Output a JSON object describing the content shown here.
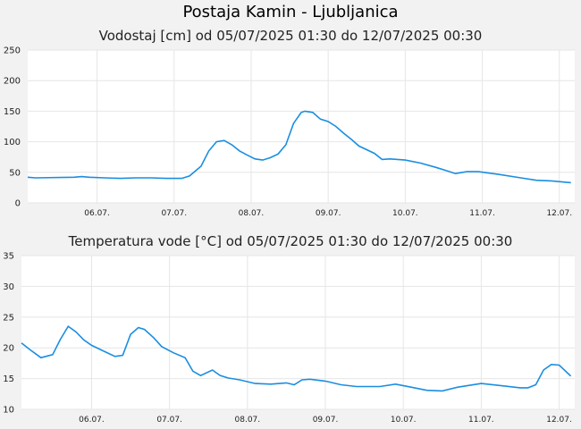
{
  "page": {
    "title": "Postaja Kamin - Ljubljanica",
    "series_color": "#1a8ee0",
    "background": "#f2f2f2"
  },
  "chart_data": [
    {
      "type": "line",
      "title": "Vodostaj [cm] od 05/07/2025 01:30 do 12/07/2025 00:30",
      "xlabel": "",
      "ylabel": "",
      "x_range": [
        0,
        7.1
      ],
      "ylim": [
        0,
        250
      ],
      "y_ticks": [
        0,
        50,
        100,
        150,
        200,
        250
      ],
      "x_ticks": [
        {
          "x": 0.9,
          "label": "06.07."
        },
        {
          "x": 1.9,
          "label": "07.07."
        },
        {
          "x": 2.9,
          "label": "08.07."
        },
        {
          "x": 3.9,
          "label": "09.07."
        },
        {
          "x": 4.9,
          "label": "10.07."
        },
        {
          "x": 5.9,
          "label": "11.07."
        },
        {
          "x": 6.9,
          "label": "12.07."
        }
      ],
      "grid": true,
      "series": [
        {
          "x": [
            0,
            0.1,
            0.6,
            0.7,
            0.8,
            1.0,
            1.2,
            1.4,
            1.6,
            1.8,
            2.0,
            2.1,
            2.25,
            2.35,
            2.45,
            2.55,
            2.65,
            2.75,
            2.85,
            2.95,
            3.05,
            3.15,
            3.25,
            3.35,
            3.45,
            3.55,
            3.6,
            3.7,
            3.8,
            3.9,
            4.0,
            4.1,
            4.2,
            4.3,
            4.5,
            4.6,
            4.7,
            4.9,
            5.1,
            5.3,
            5.45,
            5.55,
            5.7,
            5.85,
            6.1,
            6.4,
            6.6,
            6.8,
            7.05
          ],
          "y": [
            42,
            41,
            42,
            43,
            42,
            41,
            40,
            41,
            41,
            40,
            40,
            44,
            60,
            85,
            100,
            102,
            95,
            85,
            78,
            72,
            70,
            74,
            80,
            95,
            130,
            148,
            150,
            148,
            137,
            133,
            125,
            114,
            104,
            93,
            81,
            71,
            72,
            70,
            65,
            58,
            52,
            48,
            51,
            51,
            47,
            41,
            37,
            36,
            33
          ]
        }
      ]
    },
    {
      "type": "line",
      "title": "Temperatura vode [°C] od 05/07/2025 01:30 do 12/07/2025 00:30",
      "xlabel": "",
      "ylabel": "",
      "x_range": [
        0,
        7.1
      ],
      "ylim": [
        10,
        35
      ],
      "y_ticks": [
        10,
        15,
        20,
        25,
        30,
        35
      ],
      "x_ticks": [
        {
          "x": 0.9,
          "label": "06.07."
        },
        {
          "x": 1.9,
          "label": "07.07."
        },
        {
          "x": 2.9,
          "label": "08.07."
        },
        {
          "x": 3.9,
          "label": "09.07."
        },
        {
          "x": 4.9,
          "label": "10.07."
        },
        {
          "x": 5.9,
          "label": "11.07."
        },
        {
          "x": 6.9,
          "label": "12.07."
        }
      ],
      "grid": true,
      "series": [
        {
          "x": [
            0,
            0.1,
            0.25,
            0.4,
            0.5,
            0.6,
            0.7,
            0.8,
            0.9,
            1.05,
            1.2,
            1.3,
            1.4,
            1.5,
            1.58,
            1.7,
            1.8,
            1.95,
            2.1,
            2.2,
            2.3,
            2.45,
            2.55,
            2.65,
            2.8,
            3.0,
            3.2,
            3.4,
            3.5,
            3.6,
            3.7,
            3.9,
            4.1,
            4.3,
            4.6,
            4.8,
            5.0,
            5.2,
            5.4,
            5.6,
            5.9,
            6.2,
            6.4,
            6.5,
            6.6,
            6.7,
            6.8,
            6.9,
            7.05
          ],
          "y": [
            20.8,
            19.8,
            18.4,
            18.9,
            21.4,
            23.5,
            22.6,
            21.3,
            20.4,
            19.5,
            18.6,
            18.8,
            22.2,
            23.3,
            23.0,
            21.6,
            20.2,
            19.2,
            18.4,
            16.2,
            15.5,
            16.4,
            15.5,
            15.1,
            14.8,
            14.2,
            14.1,
            14.3,
            14.0,
            14.8,
            14.9,
            14.6,
            14.0,
            13.7,
            13.7,
            14.1,
            13.6,
            13.1,
            13.0,
            13.6,
            14.2,
            13.8,
            13.5,
            13.5,
            14.0,
            16.4,
            17.3,
            17.2,
            15.4
          ]
        }
      ]
    }
  ]
}
